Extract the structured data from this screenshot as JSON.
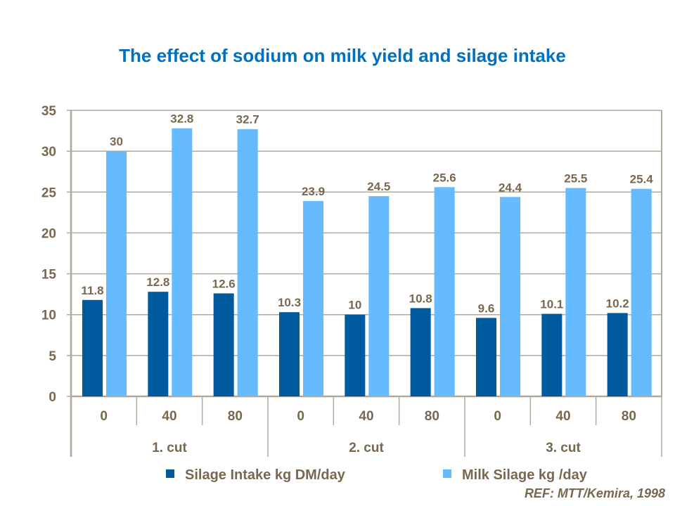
{
  "chart_data": {
    "type": "bar",
    "title": "The effect of sodium on milk yield and silage intake",
    "groups": [
      "1. cut",
      "2. cut",
      "3. cut"
    ],
    "categories": [
      "0",
      "40",
      "80",
      "0",
      "40",
      "80",
      "0",
      "40",
      "80"
    ],
    "series": [
      {
        "name": "Silage Intake kg DM/day",
        "color": "#005a9e",
        "values": [
          11.8,
          12.8,
          12.6,
          10.3,
          10,
          10.8,
          9.6,
          10.1,
          10.2
        ]
      },
      {
        "name": "Milk Silage kg /day",
        "color": "#66bbff",
        "values": [
          30,
          32.8,
          32.7,
          23.9,
          24.5,
          25.6,
          24.4,
          25.5,
          25.4
        ]
      }
    ],
    "ylim": [
      0,
      35
    ],
    "yticks": [
      0,
      5,
      10,
      15,
      20,
      25,
      30,
      35
    ],
    "grid": true,
    "legend_position": "bottom",
    "data_labels": true
  },
  "reference": "REF: MTT/Kemira, 1998"
}
